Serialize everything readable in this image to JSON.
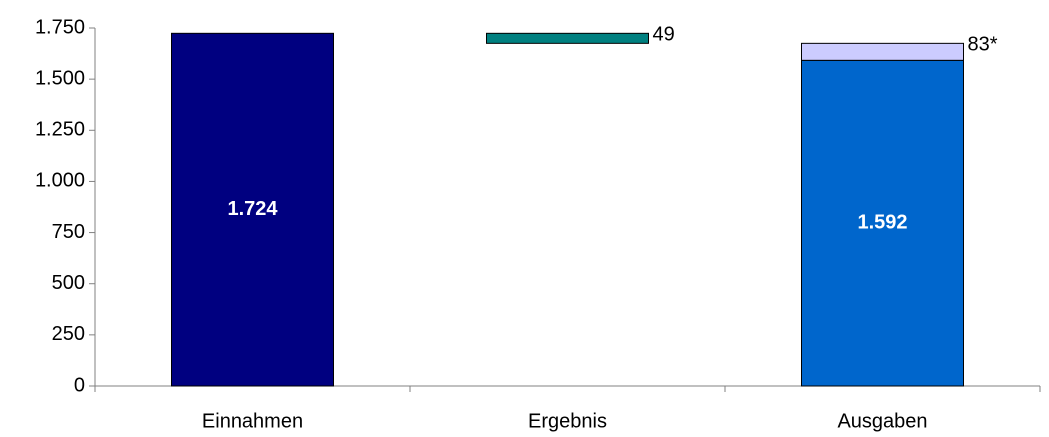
{
  "chart_data": {
    "type": "waterfall",
    "categories": [
      "Einnahmen",
      "Ergebnis",
      "Ausgaben"
    ],
    "series": [
      {
        "colors": [
          "#000080",
          null,
          "#0066cc"
        ],
        "values": [
          1724,
          null,
          1592
        ],
        "value_labels": [
          "1.724",
          null,
          "1.592"
        ]
      },
      {
        "color": "#ccccff",
        "values": [
          null,
          null,
          83
        ],
        "value_labels": [
          null,
          null,
          "83*"
        ]
      },
      {
        "color": "#008080",
        "values": [
          null,
          49,
          null
        ]
      }
    ],
    "ylim": [
      0,
      1750
    ],
    "yticks": [
      0,
      250,
      500,
      750,
      {
        "value": 1000,
        "label": "1.000"
      },
      {
        "value": 1250,
        "label": "1.250"
      },
      {
        "value": 1500,
        "label": "1.500"
      },
      {
        "value": 1750,
        "label": "1.750"
      }
    ],
    "grid": false
  }
}
